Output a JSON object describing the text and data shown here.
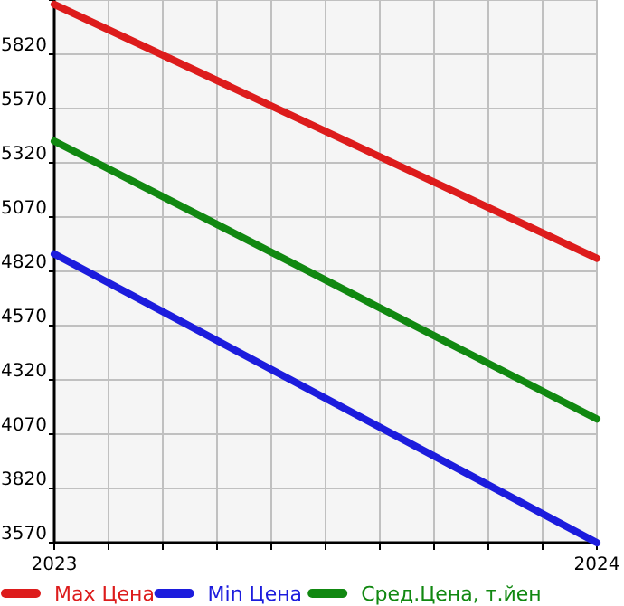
{
  "chart_data": {
    "type": "line",
    "x": [
      2023,
      2024
    ],
    "xlim": [
      2023,
      2024
    ],
    "xticks": [
      {
        "value": 2023,
        "label": "2023"
      },
      {
        "value": 2023.1,
        "label": null
      },
      {
        "value": 2023.2,
        "label": null
      },
      {
        "value": 2023.3,
        "label": null
      },
      {
        "value": 2023.4,
        "label": null
      },
      {
        "value": 2023.5,
        "label": null
      },
      {
        "value": 2023.6,
        "label": null
      },
      {
        "value": 2023.7,
        "label": null
      },
      {
        "value": 2023.8,
        "label": null
      },
      {
        "value": 2023.9,
        "label": null
      },
      {
        "value": 2024,
        "label": "2024"
      }
    ],
    "ylim": [
      3570,
      6070
    ],
    "yticks": [
      3570,
      3820,
      4070,
      4320,
      4570,
      4820,
      5070,
      5320,
      5570,
      5820,
      {
        "value": 6070,
        "label": null
      }
    ],
    "grid": true,
    "legend": "bottom",
    "marker": "none",
    "line_style": "solid",
    "series": [
      {
        "name": "Max Цена",
        "color": "#dd1c1c",
        "values": [
          6050,
          4880
        ]
      },
      {
        "name": "Min Цена",
        "color": "#1c1cdd",
        "values": [
          4900,
          3570
        ]
      },
      {
        "name": "Сред.Цена, т.йен",
        "color": "#118811",
        "values": [
          5420,
          4140
        ]
      }
    ]
  }
}
